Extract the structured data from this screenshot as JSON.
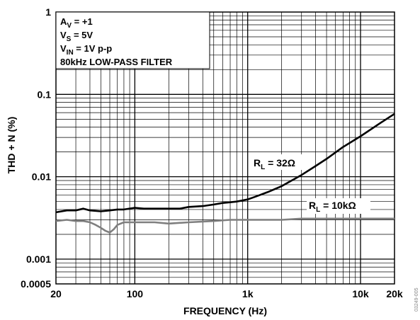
{
  "chart_data": {
    "type": "line",
    "title": "",
    "xlabel": "FREQUENCY (Hz)",
    "ylabel": "THD + N (%)",
    "x_scale": "log",
    "y_scale": "log",
    "xlim": [
      20,
      20000
    ],
    "ylim": [
      0.0005,
      1
    ],
    "grid": true,
    "x_ticks": [
      {
        "value": 20,
        "label": "20"
      },
      {
        "value": 100,
        "label": "100"
      },
      {
        "value": 1000,
        "label": "1k"
      },
      {
        "value": 10000,
        "label": "10k"
      },
      {
        "value": 20000,
        "label": "20k"
      }
    ],
    "y_ticks": [
      {
        "value": 1,
        "label": "1"
      },
      {
        "value": 0.1,
        "label": "0.1"
      },
      {
        "value": 0.01,
        "label": "0.01"
      },
      {
        "value": 0.001,
        "label": "0.001"
      },
      {
        "value": 0.0005,
        "label": "0.0005"
      }
    ],
    "conditions": {
      "line1": {
        "main": "A",
        "sub": "V",
        "rest": " = +1"
      },
      "line2": {
        "main": "V",
        "sub": "S",
        "rest": " = 5V"
      },
      "line3": {
        "main": "V",
        "sub": "IN",
        "rest": " = 1V p-p"
      },
      "line4": "80kHz LOW-PASS FILTER"
    },
    "series": [
      {
        "label_main": "R",
        "label_sub": "L",
        "label_rest": " = 32Ω",
        "color": "#000000",
        "points": [
          [
            20,
            0.0037
          ],
          [
            25,
            0.0039
          ],
          [
            30,
            0.0039
          ],
          [
            35,
            0.0041
          ],
          [
            40,
            0.0039
          ],
          [
            50,
            0.0038
          ],
          [
            60,
            0.0039
          ],
          [
            70,
            0.004
          ],
          [
            80,
            0.004
          ],
          [
            100,
            0.0042
          ],
          [
            120,
            0.0041
          ],
          [
            150,
            0.0041
          ],
          [
            200,
            0.0041
          ],
          [
            250,
            0.0041
          ],
          [
            300,
            0.0043
          ],
          [
            400,
            0.0044
          ],
          [
            500,
            0.0046
          ],
          [
            600,
            0.0048
          ],
          [
            700,
            0.0049
          ],
          [
            800,
            0.005
          ],
          [
            1000,
            0.0053
          ],
          [
            1200,
            0.0058
          ],
          [
            1500,
            0.0065
          ],
          [
            2000,
            0.0077
          ],
          [
            3000,
            0.0105
          ],
          [
            4000,
            0.0135
          ],
          [
            5000,
            0.0165
          ],
          [
            7000,
            0.023
          ],
          [
            10000,
            0.031
          ],
          [
            15000,
            0.045
          ],
          [
            20000,
            0.058
          ]
        ]
      },
      {
        "label_main": "R",
        "label_sub": "L",
        "label_rest": " = 10kΩ",
        "color": "#7f7f7f",
        "points": [
          [
            20,
            0.0029
          ],
          [
            25,
            0.003
          ],
          [
            30,
            0.0029
          ],
          [
            35,
            0.0029
          ],
          [
            40,
            0.0028
          ],
          [
            45,
            0.0026
          ],
          [
            50,
            0.0024
          ],
          [
            55,
            0.0022
          ],
          [
            60,
            0.0021
          ],
          [
            65,
            0.0023
          ],
          [
            70,
            0.0026
          ],
          [
            80,
            0.0028
          ],
          [
            100,
            0.0028
          ],
          [
            150,
            0.0028
          ],
          [
            200,
            0.0027
          ],
          [
            300,
            0.0028
          ],
          [
            500,
            0.0029
          ],
          [
            700,
            0.003
          ],
          [
            1000,
            0.003
          ],
          [
            2000,
            0.003
          ],
          [
            3000,
            0.0031
          ],
          [
            5000,
            0.0031
          ],
          [
            10000,
            0.0031
          ],
          [
            20000,
            0.0031
          ]
        ]
      }
    ]
  },
  "figure_id": "03249-005"
}
